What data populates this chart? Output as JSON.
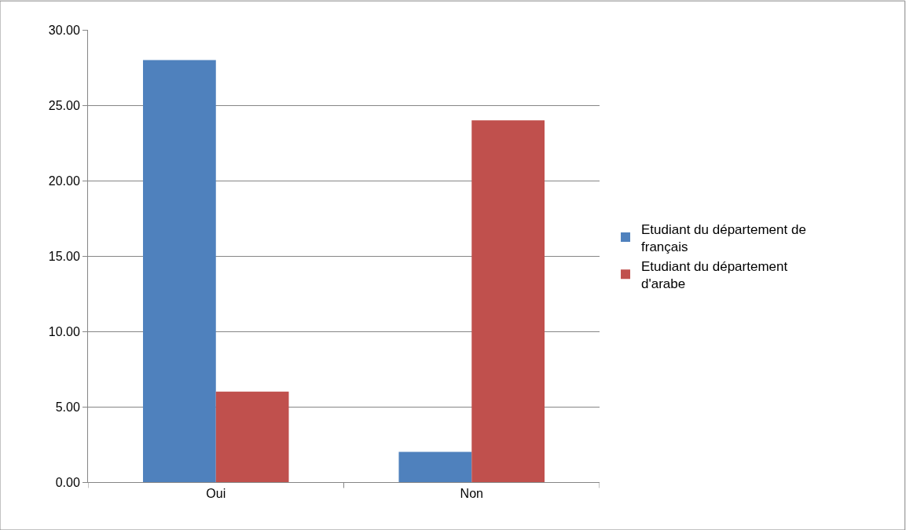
{
  "chart_data": {
    "type": "bar",
    "categories": [
      "Oui",
      "Non"
    ],
    "series": [
      {
        "name": "Etudiant du département de français",
        "color": "#4f81bd",
        "values": [
          28,
          2
        ]
      },
      {
        "name": "Etudiant du département d'arabe",
        "color": "#c0504d",
        "values": [
          6,
          24
        ]
      }
    ],
    "ylim": [
      0,
      30
    ],
    "yticks": [
      {
        "value": 0,
        "label": "0.00"
      },
      {
        "value": 5,
        "label": "5.00"
      },
      {
        "value": 10,
        "label": "10.00"
      },
      {
        "value": 15,
        "label": "15.00"
      },
      {
        "value": 20,
        "label": "20.00"
      },
      {
        "value": 25,
        "label": "25.00"
      },
      {
        "value": 30,
        "label": "30.00"
      }
    ],
    "grid": "y",
    "legend": "right"
  }
}
